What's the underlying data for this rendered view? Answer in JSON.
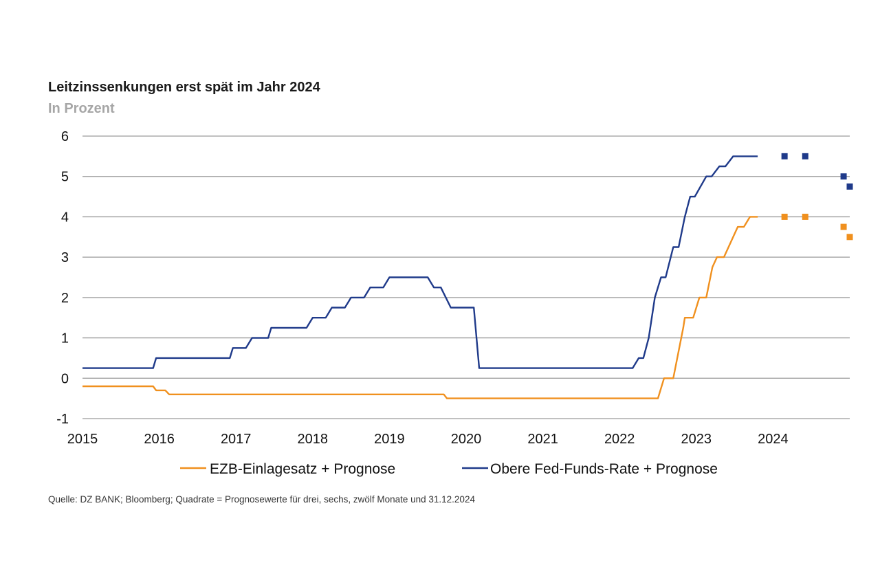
{
  "chart_data": {
    "type": "line",
    "title": "Leitzinssenkungen erst spät im Jahr 2024",
    "subtitle": "In Prozent",
    "source": "Quelle: DZ BANK; Bloomberg; Quadrate = Prognosewerte für drei, sechs, zwölf Monate und 31.12.2024",
    "xlim": [
      2015,
      2025
    ],
    "ylim": [
      -1,
      6
    ],
    "x_ticks": [
      "2015",
      "2016",
      "2017",
      "2018",
      "2019",
      "2020",
      "2021",
      "2022",
      "2023",
      "2024"
    ],
    "y_ticks": [
      "-1",
      "0",
      "1",
      "2",
      "3",
      "4",
      "5",
      "6"
    ],
    "grid": "horizontal",
    "legend_position": "bottom",
    "series": [
      {
        "name": "EZB-Einlagesatz + Prognose",
        "color": "#f0901e",
        "points": [
          [
            2015.0,
            -0.2
          ],
          [
            2015.92,
            -0.2
          ],
          [
            2015.96,
            -0.3
          ],
          [
            2016.08,
            -0.3
          ],
          [
            2016.13,
            -0.4
          ],
          [
            2019.71,
            -0.4
          ],
          [
            2019.75,
            -0.5
          ],
          [
            2022.5,
            -0.5
          ],
          [
            2022.58,
            0.0
          ],
          [
            2022.7,
            0.0
          ],
          [
            2022.83,
            1.25
          ],
          [
            2022.85,
            1.5
          ],
          [
            2022.96,
            1.5
          ],
          [
            2023.04,
            2.0
          ],
          [
            2023.13,
            2.0
          ],
          [
            2023.21,
            2.75
          ],
          [
            2023.27,
            3.0
          ],
          [
            2023.36,
            3.0
          ],
          [
            2023.48,
            3.5
          ],
          [
            2023.54,
            3.75
          ],
          [
            2023.62,
            3.75
          ],
          [
            2023.7,
            4.0
          ],
          [
            2023.8,
            4.0
          ]
        ],
        "forecast": [
          [
            2024.15,
            4.0
          ],
          [
            2024.42,
            4.0
          ],
          [
            2024.92,
            3.75
          ],
          [
            2025.0,
            3.5
          ]
        ]
      },
      {
        "name": "Obere Fed-Funds-Rate + Prognose",
        "color": "#1f3a8a",
        "points": [
          [
            2015.0,
            0.25
          ],
          [
            2015.92,
            0.25
          ],
          [
            2015.96,
            0.5
          ],
          [
            2016.92,
            0.5
          ],
          [
            2016.96,
            0.75
          ],
          [
            2017.13,
            0.75
          ],
          [
            2017.21,
            1.0
          ],
          [
            2017.42,
            1.0
          ],
          [
            2017.46,
            1.25
          ],
          [
            2017.92,
            1.25
          ],
          [
            2018.0,
            1.5
          ],
          [
            2018.17,
            1.5
          ],
          [
            2018.25,
            1.75
          ],
          [
            2018.42,
            1.75
          ],
          [
            2018.5,
            2.0
          ],
          [
            2018.67,
            2.0
          ],
          [
            2018.75,
            2.25
          ],
          [
            2018.92,
            2.25
          ],
          [
            2019.0,
            2.5
          ],
          [
            2019.5,
            2.5
          ],
          [
            2019.58,
            2.25
          ],
          [
            2019.67,
            2.25
          ],
          [
            2019.8,
            1.75
          ],
          [
            2020.1,
            1.75
          ],
          [
            2020.17,
            0.25
          ],
          [
            2022.17,
            0.25
          ],
          [
            2022.25,
            0.5
          ],
          [
            2022.31,
            0.5
          ],
          [
            2022.38,
            1.0
          ],
          [
            2022.46,
            2.0
          ],
          [
            2022.54,
            2.5
          ],
          [
            2022.6,
            2.5
          ],
          [
            2022.7,
            3.25
          ],
          [
            2022.77,
            3.25
          ],
          [
            2022.85,
            4.0
          ],
          [
            2022.92,
            4.5
          ],
          [
            2022.98,
            4.5
          ],
          [
            2023.13,
            5.0
          ],
          [
            2023.2,
            5.0
          ],
          [
            2023.3,
            5.25
          ],
          [
            2023.38,
            5.25
          ],
          [
            2023.48,
            5.5
          ],
          [
            2023.8,
            5.5
          ]
        ],
        "forecast": [
          [
            2024.15,
            5.5
          ],
          [
            2024.42,
            5.5
          ],
          [
            2024.92,
            5.0
          ],
          [
            2025.0,
            4.75
          ]
        ]
      }
    ]
  }
}
